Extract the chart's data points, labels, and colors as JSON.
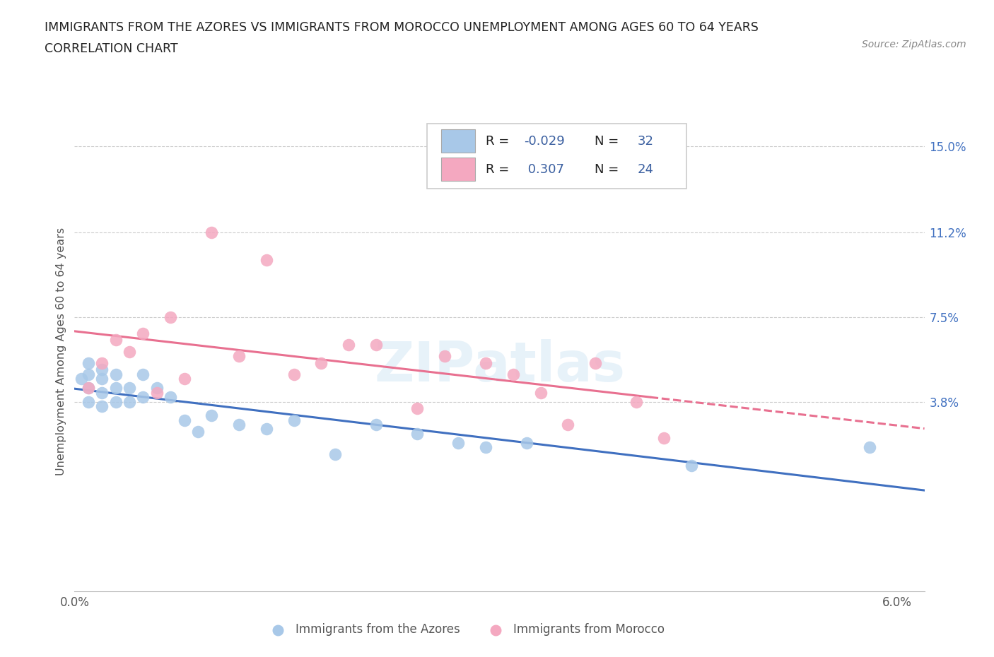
{
  "title_line1": "IMMIGRANTS FROM THE AZORES VS IMMIGRANTS FROM MOROCCO UNEMPLOYMENT AMONG AGES 60 TO 64 YEARS",
  "title_line2": "CORRELATION CHART",
  "source": "Source: ZipAtlas.com",
  "ylabel": "Unemployment Among Ages 60 to 64 years",
  "xlim": [
    0.0,
    0.062
  ],
  "ylim": [
    -0.045,
    0.165
  ],
  "xticks": [
    0.0,
    0.01,
    0.02,
    0.03,
    0.04,
    0.05,
    0.06
  ],
  "xtick_labels": [
    "0.0%",
    "",
    "",
    "",
    "",
    "",
    "6.0%"
  ],
  "ytick_right_vals": [
    0.038,
    0.075,
    0.112,
    0.15
  ],
  "ytick_right_labels": [
    "3.8%",
    "7.5%",
    "11.2%",
    "15.0%"
  ],
  "color_azores": "#a8c8e8",
  "color_morocco": "#f4a8c0",
  "color_line_azores": "#4070c0",
  "color_line_morocco": "#e87090",
  "color_grid": "#cccccc",
  "color_stat": "#3a5fa0",
  "azores_x": [
    0.0005,
    0.001,
    0.001,
    0.001,
    0.001,
    0.002,
    0.002,
    0.002,
    0.002,
    0.003,
    0.003,
    0.003,
    0.004,
    0.004,
    0.005,
    0.005,
    0.006,
    0.007,
    0.008,
    0.009,
    0.01,
    0.012,
    0.014,
    0.016,
    0.019,
    0.022,
    0.025,
    0.028,
    0.03,
    0.033,
    0.045,
    0.058
  ],
  "azores_y": [
    0.048,
    0.055,
    0.05,
    0.044,
    0.038,
    0.052,
    0.048,
    0.042,
    0.036,
    0.05,
    0.044,
    0.038,
    0.044,
    0.038,
    0.05,
    0.04,
    0.044,
    0.04,
    0.03,
    0.025,
    0.032,
    0.028,
    0.026,
    0.03,
    0.015,
    0.028,
    0.024,
    0.02,
    0.018,
    0.02,
    0.01,
    0.018
  ],
  "morocco_x": [
    0.001,
    0.002,
    0.003,
    0.004,
    0.005,
    0.006,
    0.007,
    0.008,
    0.01,
    0.012,
    0.014,
    0.016,
    0.018,
    0.02,
    0.022,
    0.025,
    0.027,
    0.03,
    0.032,
    0.034,
    0.036,
    0.038,
    0.041,
    0.043
  ],
  "morocco_y": [
    0.044,
    0.055,
    0.065,
    0.06,
    0.068,
    0.042,
    0.075,
    0.048,
    0.112,
    0.058,
    0.1,
    0.05,
    0.055,
    0.063,
    0.063,
    0.035,
    0.058,
    0.055,
    0.05,
    0.042,
    0.028,
    0.055,
    0.038,
    0.022
  ],
  "morocco_line_solid_xlim": [
    0.0,
    0.042
  ],
  "morocco_line_dashed_xlim": [
    0.042,
    0.062
  ]
}
